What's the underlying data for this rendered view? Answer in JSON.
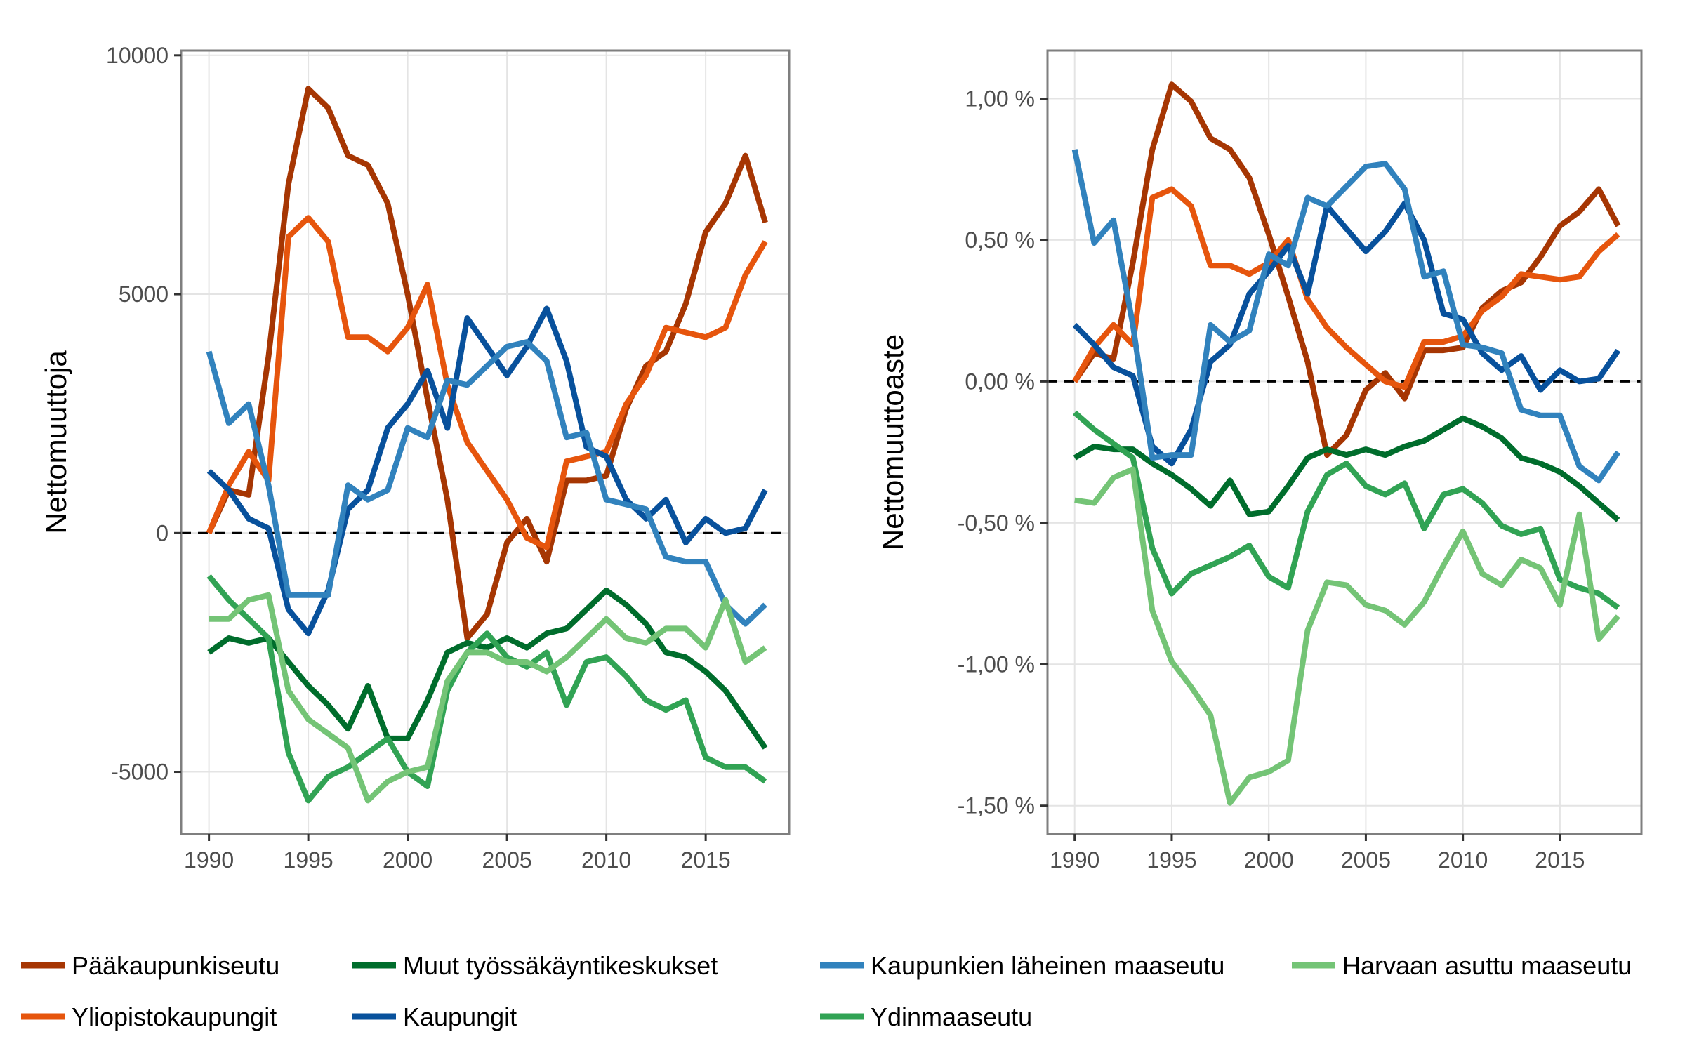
{
  "chart_data": [
    {
      "type": "line",
      "ylabel": "Nettomuuttoja",
      "xlabel": "",
      "xlim": [
        1988.6,
        2019.2
      ],
      "ylim": [
        -6300,
        10100
      ],
      "x_ticks": [
        1990,
        1995,
        2000,
        2005,
        2010,
        2015
      ],
      "x_tick_labels": [
        "1990",
        "1995",
        "2000",
        "2005",
        "2010",
        "2015"
      ],
      "y_ticks": [
        -5000,
        0,
        5000,
        10000
      ],
      "y_tick_labels": [
        "-5000",
        "0",
        "5000",
        "10000"
      ],
      "zero_line": true,
      "grid": true,
      "x": [
        1990,
        1991,
        1992,
        1993,
        1994,
        1995,
        1996,
        1997,
        1998,
        1999,
        2000,
        2001,
        2002,
        2003,
        2004,
        2005,
        2006,
        2007,
        2008,
        2009,
        2010,
        2011,
        2012,
        2013,
        2014,
        2015,
        2016,
        2017,
        2018
      ],
      "series": [
        {
          "name": "Pääkaupunkiseutu",
          "color": "#a63603",
          "values": [
            0,
            900,
            800,
            3700,
            7300,
            9300,
            8900,
            7900,
            7700,
            6900,
            5000,
            2800,
            700,
            -2200,
            -1700,
            -200,
            300,
            -600,
            1100,
            1100,
            1200,
            2600,
            3500,
            3800,
            4800,
            6300,
            6900,
            7900,
            6500
          ]
        },
        {
          "name": "Yliopistokaupungit",
          "color": "#e6550d",
          "values": [
            0,
            1000,
            1700,
            1100,
            6200,
            6600,
            6100,
            4100,
            4100,
            3800,
            4300,
            5200,
            3100,
            1900,
            1300,
            700,
            -100,
            -300,
            1500,
            1600,
            1700,
            2700,
            3300,
            4300,
            4200,
            4100,
            4300,
            5400,
            6100
          ]
        },
        {
          "name": "Muut työssäkäyntikeskukset",
          "color": "#006d2c",
          "values": [
            -2500,
            -2200,
            -2300,
            -2200,
            -2700,
            -3200,
            -3600,
            -4100,
            -3200,
            -4300,
            -4300,
            -3500,
            -2500,
            -2300,
            -2400,
            -2200,
            -2400,
            -2100,
            -2000,
            -1600,
            -1200,
            -1500,
            -1900,
            -2500,
            -2600,
            -2900,
            -3300,
            -3900,
            -4500
          ]
        },
        {
          "name": "Kaupungit",
          "color": "#08519c",
          "values": [
            1300,
            900,
            300,
            100,
            -1600,
            -2100,
            -1200,
            500,
            900,
            2200,
            2700,
            3400,
            2200,
            4500,
            3900,
            3300,
            3900,
            4700,
            3600,
            1800,
            1600,
            700,
            300,
            700,
            -200,
            300,
            0,
            100,
            900
          ]
        },
        {
          "name": "Ydinmaaseutu",
          "color": "#31a354",
          "values": [
            -900,
            -1400,
            -1800,
            -2200,
            -4600,
            -5600,
            -5100,
            -4900,
            -4600,
            -4300,
            -5000,
            -5300,
            -3300,
            -2500,
            -2100,
            -2600,
            -2800,
            -2500,
            -3600,
            -2700,
            -2600,
            -3000,
            -3500,
            -3700,
            -3500,
            -4700,
            -4900,
            -4900,
            -5200
          ]
        },
        {
          "name": "Kaupunkien läheinen maaseutu",
          "color": "#3182bd",
          "values": [
            3800,
            2300,
            2700,
            1000,
            -1300,
            -1300,
            -1300,
            1000,
            700,
            900,
            2200,
            2000,
            3200,
            3100,
            3500,
            3900,
            4000,
            3600,
            2000,
            2100,
            700,
            600,
            500,
            -500,
            -600,
            -600,
            -1500,
            -1900,
            -1500
          ]
        },
        {
          "name": "Harvaan asuttu maaseutu",
          "color": "#74c476",
          "values": [
            -1800,
            -1800,
            -1400,
            -1300,
            -3300,
            -3900,
            -4200,
            -4500,
            -5600,
            -5200,
            -5000,
            -4900,
            -3100,
            -2500,
            -2500,
            -2700,
            -2700,
            -2900,
            -2600,
            -2200,
            -1800,
            -2200,
            -2300,
            -2000,
            -2000,
            -2400,
            -1400,
            -2700,
            -2400
          ]
        }
      ]
    },
    {
      "type": "line",
      "ylabel": "Nettomuuttoaste",
      "xlabel": "",
      "xlim": [
        1988.6,
        2019.2
      ],
      "ylim": [
        -1.6,
        1.17
      ],
      "x_ticks": [
        1990,
        1995,
        2000,
        2005,
        2010,
        2015
      ],
      "x_tick_labels": [
        "1990",
        "1995",
        "2000",
        "2005",
        "2010",
        "2015"
      ],
      "y_ticks": [
        -1.5,
        -1.0,
        -0.5,
        0.0,
        0.5,
        1.0
      ],
      "y_tick_labels": [
        "-1,50 %",
        "-1,00 %",
        "-0,50 %",
        "0,00 %",
        "0,50 %",
        "1,00 %"
      ],
      "zero_line": true,
      "grid": true,
      "x": [
        1990,
        1991,
        1992,
        1993,
        1994,
        1995,
        1996,
        1997,
        1998,
        1999,
        2000,
        2001,
        2002,
        2003,
        2004,
        2005,
        2006,
        2007,
        2008,
        2009,
        2010,
        2011,
        2012,
        2013,
        2014,
        2015,
        2016,
        2017,
        2018
      ],
      "series": [
        {
          "name": "Pääkaupunkiseutu",
          "color": "#a63603",
          "values": [
            0.0,
            0.1,
            0.08,
            0.42,
            0.82,
            1.05,
            0.99,
            0.86,
            0.82,
            0.72,
            0.52,
            0.3,
            0.07,
            -0.26,
            -0.19,
            -0.03,
            0.03,
            -0.06,
            0.11,
            0.11,
            0.12,
            0.26,
            0.32,
            0.35,
            0.44,
            0.55,
            0.6,
            0.68,
            0.55
          ]
        },
        {
          "name": "Yliopistokaupungit",
          "color": "#e6550d",
          "values": [
            0.0,
            0.12,
            0.2,
            0.13,
            0.65,
            0.68,
            0.62,
            0.41,
            0.41,
            0.38,
            0.42,
            0.5,
            0.29,
            0.19,
            0.12,
            0.06,
            0.0,
            -0.02,
            0.14,
            0.14,
            0.16,
            0.25,
            0.3,
            0.38,
            0.37,
            0.36,
            0.37,
            0.46,
            0.52
          ]
        },
        {
          "name": "Muut työssäkäyntikeskukset",
          "color": "#006d2c",
          "values": [
            -0.27,
            -0.23,
            -0.24,
            -0.24,
            -0.29,
            -0.33,
            -0.38,
            -0.44,
            -0.35,
            -0.47,
            -0.46,
            -0.37,
            -0.27,
            -0.24,
            -0.26,
            -0.24,
            -0.26,
            -0.23,
            -0.21,
            -0.17,
            -0.13,
            -0.16,
            -0.2,
            -0.27,
            -0.29,
            -0.32,
            -0.37,
            -0.43,
            -0.49
          ]
        },
        {
          "name": "Kaupungit",
          "color": "#08519c",
          "values": [
            0.2,
            0.13,
            0.05,
            0.02,
            -0.23,
            -0.29,
            -0.17,
            0.07,
            0.13,
            0.31,
            0.39,
            0.48,
            0.31,
            0.62,
            0.54,
            0.46,
            0.53,
            0.63,
            0.5,
            0.24,
            0.22,
            0.1,
            0.04,
            0.09,
            -0.03,
            0.04,
            0.0,
            0.01,
            0.11
          ]
        },
        {
          "name": "Ydinmaaseutu",
          "color": "#31a354",
          "values": [
            -0.11,
            -0.17,
            -0.22,
            -0.27,
            -0.59,
            -0.75,
            -0.68,
            -0.65,
            -0.62,
            -0.58,
            -0.69,
            -0.73,
            -0.46,
            -0.33,
            -0.29,
            -0.37,
            -0.4,
            -0.36,
            -0.52,
            -0.4,
            -0.38,
            -0.43,
            -0.51,
            -0.54,
            -0.52,
            -0.7,
            -0.73,
            -0.75,
            -0.8
          ]
        },
        {
          "name": "Kaupunkien läheinen maaseutu",
          "color": "#3182bd",
          "values": [
            0.82,
            0.49,
            0.57,
            0.2,
            -0.27,
            -0.26,
            -0.26,
            0.2,
            0.14,
            0.18,
            0.45,
            0.41,
            0.65,
            0.62,
            0.69,
            0.76,
            0.77,
            0.68,
            0.37,
            0.39,
            0.13,
            0.12,
            0.1,
            -0.1,
            -0.12,
            -0.12,
            -0.3,
            -0.35,
            -0.25
          ]
        },
        {
          "name": "Harvaan asuttu maaseutu",
          "color": "#74c476",
          "values": [
            -0.42,
            -0.43,
            -0.34,
            -0.31,
            -0.81,
            -0.99,
            -1.08,
            -1.18,
            -1.49,
            -1.4,
            -1.38,
            -1.34,
            -0.88,
            -0.71,
            -0.72,
            -0.79,
            -0.81,
            -0.86,
            -0.78,
            -0.65,
            -0.53,
            -0.68,
            -0.72,
            -0.63,
            -0.66,
            -0.79,
            -0.47,
            -0.91,
            -0.83
          ]
        }
      ]
    }
  ],
  "legend": {
    "placement": "bottom",
    "items": [
      {
        "label": "Pääkaupunkiseutu",
        "color": "#a63603"
      },
      {
        "label": "Muut työssäkäyntikeskukset",
        "color": "#006d2c"
      },
      {
        "label": "Kaupunkien läheinen maaseutu",
        "color": "#3182bd"
      },
      {
        "label": "Harvaan asuttu maaseutu",
        "color": "#74c476"
      },
      {
        "label": "Yliopistokaupungit",
        "color": "#e6550d"
      },
      {
        "label": "Kaupungit",
        "color": "#08519c"
      },
      {
        "label": "Ydinmaaseutu",
        "color": "#31a354"
      }
    ]
  }
}
